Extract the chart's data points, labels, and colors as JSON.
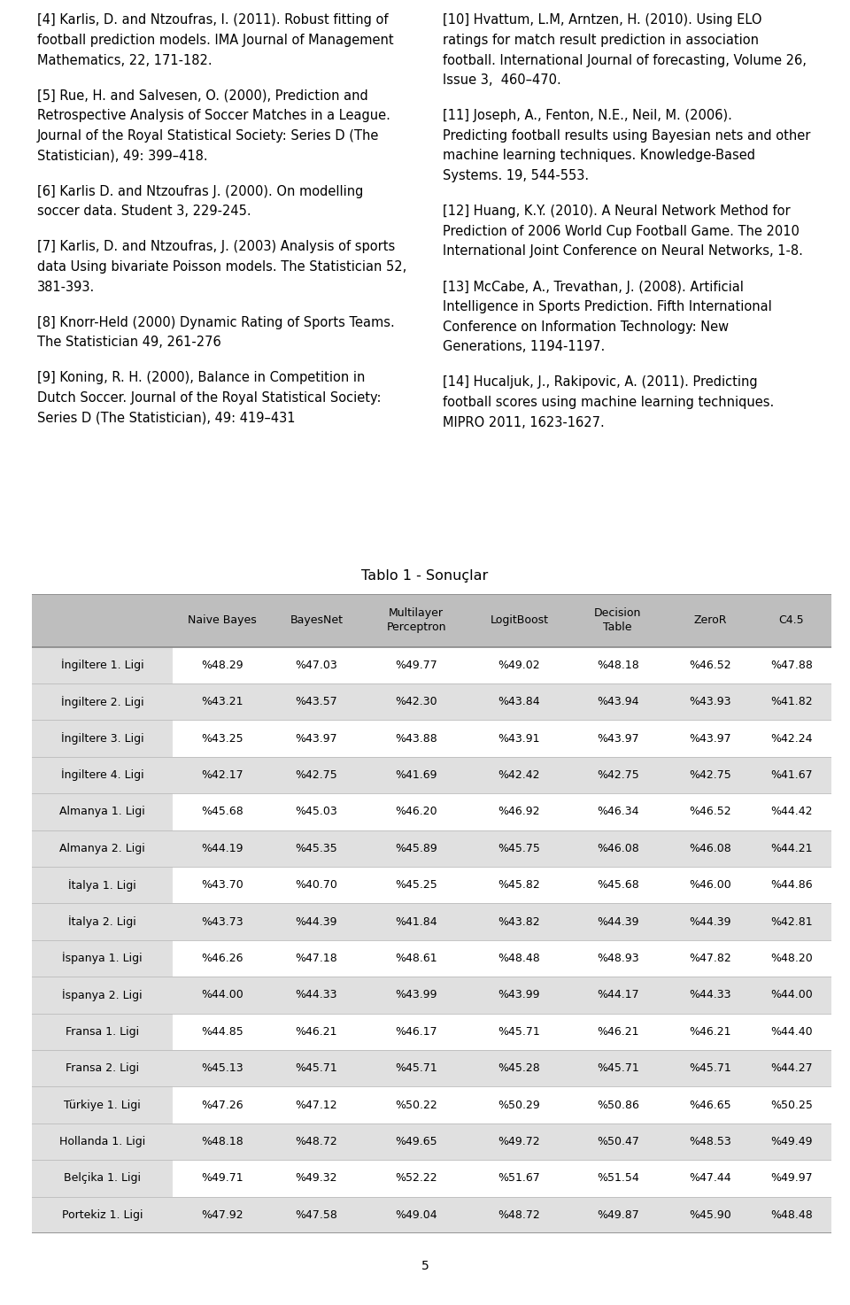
{
  "references_left": [
    "[4] Karlis, D. and Ntzoufras, I. (2011). Robust fitting of\nfootball prediction models. IMA Journal of Management\nMathematics, 22, 171-182.",
    "[5] Rue, H. and Salvesen, O. (2000), Prediction and\nRetrospective Analysis of Soccer Matches in a League.\nJournal of the Royal Statistical Society: Series D (The\nStatistician), 49: 399–418.",
    "[6] Karlis D. and Ntzoufras J. (2000). On modelling\nsoccer data. Student 3, 229-245.",
    "[7] Karlis, D. and Ntzoufras, J. (2003) Analysis of sports\ndata Using bivariate Poisson models. The Statistician 52,\n381-393.",
    "[8] Knorr-Held (2000) Dynamic Rating of Sports Teams.\nThe Statistician 49, 261-276",
    "[9] Koning, R. H. (2000), Balance in Competition in\nDutch Soccer. Journal of the Royal Statistical Society:\nSeries D (The Statistician), 49: 419–431"
  ],
  "references_right": [
    "[10] Hvattum, L.M, Arntzen, H. (2010). Using ELO\nratings for match result prediction in association\nfootball. International Journal of forecasting, Volume 26,\nIssue 3,  460–470.",
    "[11] Joseph, A., Fenton, N.E., Neil, M. (2006).\nPredicting football results using Bayesian nets and other\nmachine learning techniques. Knowledge-Based\nSystems. 19, 544-553.",
    "[12] Huang, K.Y. (2010). A Neural Network Method for\nPrediction of 2006 World Cup Football Game. The 2010\nInternational Joint Conference on Neural Networks, 1-8.",
    "[13] McCabe, A., Trevathan, J. (2008). Artificial\nIntelligence in Sports Prediction. Fifth International\nConference on Information Technology: New\nGenerations, 1194-1197.",
    "[14] Hucaljuk, J., Rakipovic, A. (2011). Predicting\nfootball scores using machine learning techniques.\nMIPRO 2011, 1623-1627."
  ],
  "table_title": "Tablo 1 - Sonuçlar",
  "col_headers": [
    "",
    "Naive Bayes",
    "BayesNet",
    "Multilayer\nPerceptron",
    "LogitBoost",
    "Decision\nTable",
    "ZeroR",
    "C4.5"
  ],
  "rows": [
    [
      "İngiltere 1. Ligi",
      "%48.29",
      "%47.03",
      "%49.77",
      "%49.02",
      "%48.18",
      "%46.52",
      "%47.88"
    ],
    [
      "İngiltere 2. Ligi",
      "%43.21",
      "%43.57",
      "%42.30",
      "%43.84",
      "%43.94",
      "%43.93",
      "%41.82"
    ],
    [
      "İngiltere 3. Ligi",
      "%43.25",
      "%43.97",
      "%43.88",
      "%43.91",
      "%43.97",
      "%43.97",
      "%42.24"
    ],
    [
      "İngiltere 4. Ligi",
      "%42.17",
      "%42.75",
      "%41.69",
      "%42.42",
      "%42.75",
      "%42.75",
      "%41.67"
    ],
    [
      "Almanya 1. Ligi",
      "%45.68",
      "%45.03",
      "%46.20",
      "%46.92",
      "%46.34",
      "%46.52",
      "%44.42"
    ],
    [
      "Almanya 2. Ligi",
      "%44.19",
      "%45.35",
      "%45.89",
      "%45.75",
      "%46.08",
      "%46.08",
      "%44.21"
    ],
    [
      "İtalya 1. Ligi",
      "%43.70",
      "%40.70",
      "%45.25",
      "%45.82",
      "%45.68",
      "%46.00",
      "%44.86"
    ],
    [
      "İtalya 2. Ligi",
      "%43.73",
      "%44.39",
      "%41.84",
      "%43.82",
      "%44.39",
      "%44.39",
      "%42.81"
    ],
    [
      "İspanya 1. Ligi",
      "%46.26",
      "%47.18",
      "%48.61",
      "%48.48",
      "%48.93",
      "%47.82",
      "%48.20"
    ],
    [
      "İspanya 2. Ligi",
      "%44.00",
      "%44.33",
      "%43.99",
      "%43.99",
      "%44.17",
      "%44.33",
      "%44.00"
    ],
    [
      "Fransa 1. Ligi",
      "%44.85",
      "%46.21",
      "%46.17",
      "%45.71",
      "%46.21",
      "%46.21",
      "%44.40"
    ],
    [
      "Fransa 2. Ligi",
      "%45.13",
      "%45.71",
      "%45.71",
      "%45.28",
      "%45.71",
      "%45.71",
      "%44.27"
    ],
    [
      "Türkiye 1. Ligi",
      "%47.26",
      "%47.12",
      "%50.22",
      "%50.29",
      "%50.86",
      "%46.65",
      "%50.25"
    ],
    [
      "Hollanda 1. Ligi",
      "%48.18",
      "%48.72",
      "%49.65",
      "%49.72",
      "%50.47",
      "%48.53",
      "%49.49"
    ],
    [
      "Belçika 1. Ligi",
      "%49.71",
      "%49.32",
      "%52.22",
      "%51.67",
      "%51.54",
      "%47.44",
      "%49.97"
    ],
    [
      "Portekiz 1. Ligi",
      "%47.92",
      "%47.58",
      "%49.04",
      "%48.72",
      "%49.87",
      "%45.90",
      "%48.48"
    ]
  ],
  "page_number": "5",
  "bg_color": "#ffffff",
  "text_color": "#000000",
  "header_bg": "#bebebe",
  "row_bg_even": "#e0e0e0",
  "row_bg_odd": "#ffffff",
  "ref_font_size": 10.5,
  "table_font_size": 9.0,
  "title_font_size": 11.5
}
